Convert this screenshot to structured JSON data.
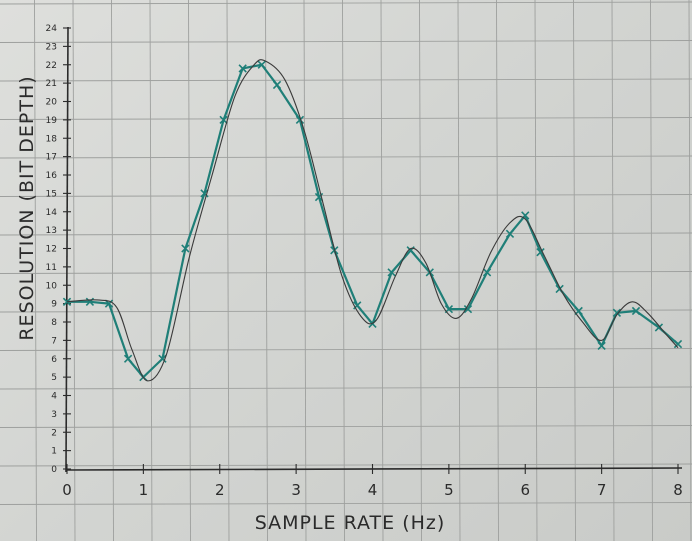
{
  "chart_data": {
    "type": "line",
    "title": "",
    "xlabel": "SAMPLE RATE (Hz)",
    "ylabel": "RESOLUTION (BIT DEPTH)",
    "xlim": [
      0,
      8
    ],
    "ylim": [
      0,
      24
    ],
    "xticks": [
      "0",
      "1",
      "2",
      "3",
      "4",
      "5",
      "6",
      "7",
      "8"
    ],
    "yticks": [
      "0",
      "1",
      "2",
      "3",
      "4",
      "5",
      "6",
      "7",
      "8",
      "9",
      "10",
      "11",
      "12",
      "13",
      "14",
      "15",
      "16",
      "17",
      "18",
      "19",
      "20",
      "21",
      "22",
      "23",
      "24"
    ],
    "grid": true,
    "series": [
      {
        "style": "teal line with x markers",
        "color": "#1f7f78",
        "marker": "x",
        "x": [
          0,
          0.3,
          0.55,
          0.8,
          1.0,
          1.25,
          1.55,
          1.8,
          2.05,
          2.3,
          2.55,
          2.75,
          3.05,
          3.3,
          3.5,
          3.8,
          4.0,
          4.25,
          4.5,
          4.75,
          5.0,
          5.25,
          5.5,
          5.8,
          6.0,
          6.2,
          6.45,
          6.7,
          7.0,
          7.2,
          7.45,
          7.75,
          8.0
        ],
        "y": [
          9.1,
          9.1,
          9.0,
          6.0,
          5.0,
          6.0,
          12.0,
          15.0,
          19.0,
          21.8,
          22.0,
          20.9,
          19.0,
          14.8,
          11.9,
          8.9,
          7.9,
          10.7,
          11.9,
          10.7,
          8.7,
          8.7,
          10.7,
          12.8,
          13.8,
          11.8,
          9.8,
          8.6,
          6.7,
          8.5,
          8.6,
          7.7,
          6.8
        ]
      },
      {
        "style": "thin dark smooth line",
        "color": "#3a3a3a",
        "marker": "none",
        "x": [
          0,
          0.4,
          0.65,
          0.85,
          1.05,
          1.3,
          1.6,
          1.9,
          2.2,
          2.45,
          2.6,
          2.85,
          3.1,
          3.35,
          3.6,
          3.85,
          4.05,
          4.3,
          4.5,
          4.7,
          4.9,
          5.1,
          5.3,
          5.55,
          5.8,
          6.0,
          6.25,
          6.5,
          6.75,
          7.0,
          7.2,
          7.4,
          7.6,
          7.85,
          8.0
        ],
        "y": [
          9.1,
          9.2,
          8.8,
          6.5,
          4.8,
          6.2,
          11.5,
          16.0,
          20.3,
          22.0,
          22.2,
          21.2,
          18.5,
          14.5,
          10.5,
          8.3,
          8.1,
          10.5,
          12.0,
          11.2,
          9.0,
          8.2,
          9.3,
          11.8,
          13.4,
          13.6,
          11.6,
          9.5,
          8.0,
          7.0,
          8.4,
          9.1,
          8.5,
          7.3,
          6.6
        ]
      }
    ]
  }
}
